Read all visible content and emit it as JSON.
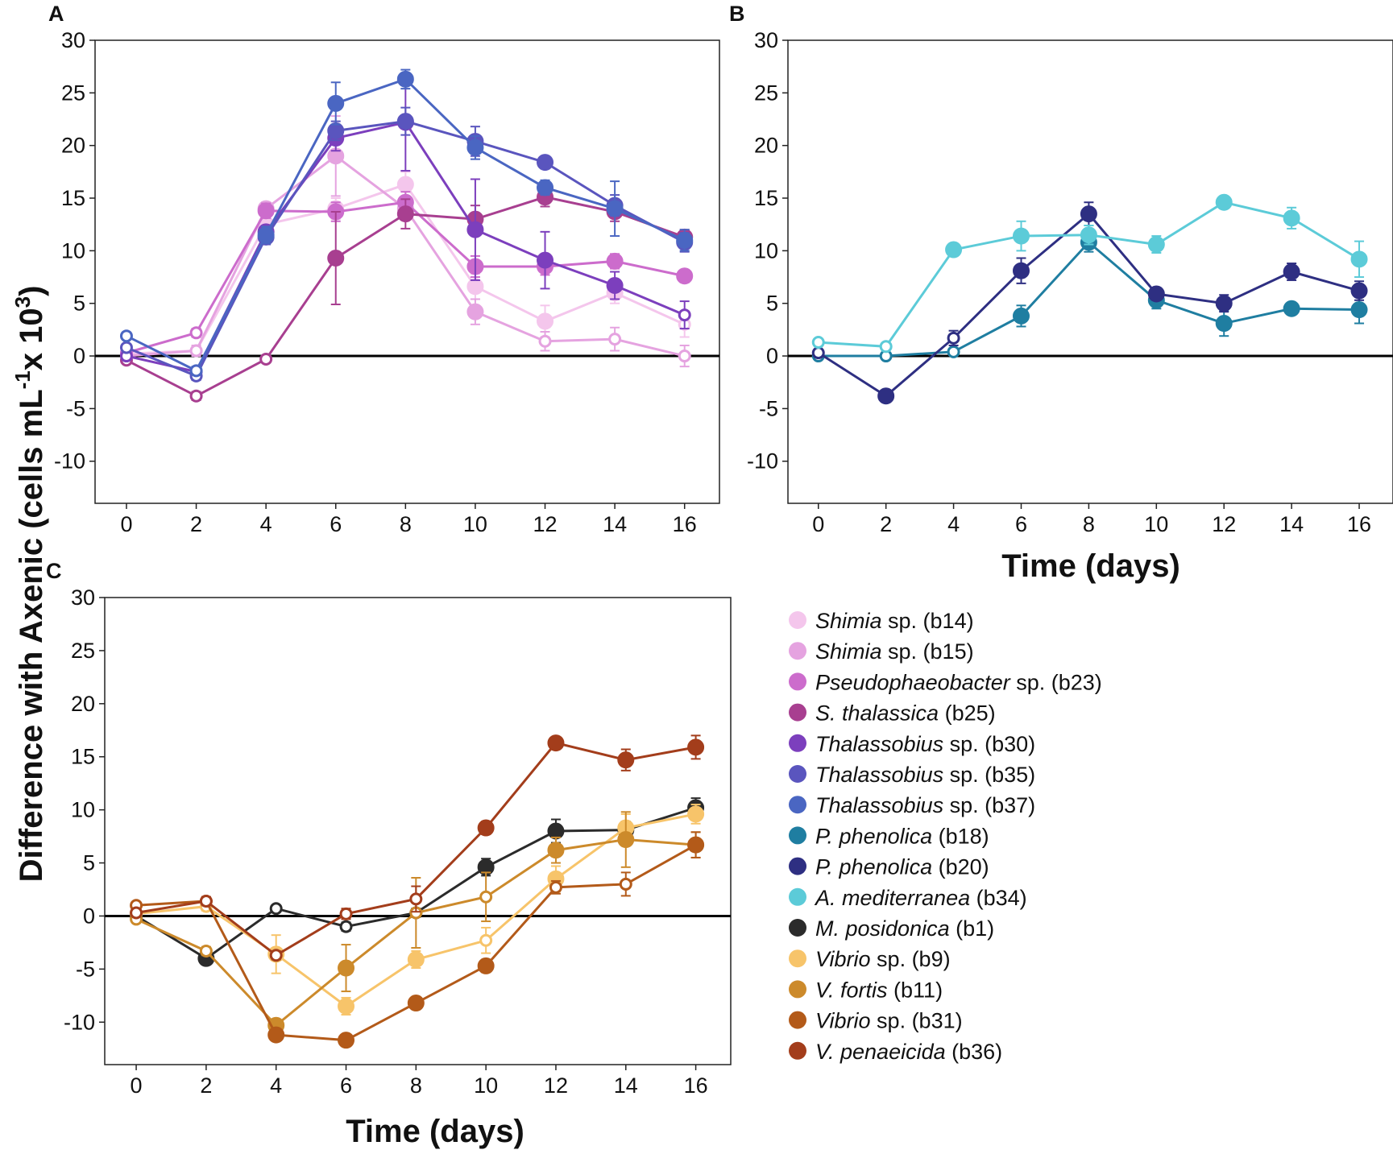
{
  "figure": {
    "panels": [
      "A",
      "B",
      "C"
    ],
    "ylabel": "Difference with Axenic (cells mL",
    "ylabel_sup1": "-1",
    "ylabel_mid": "x 10",
    "ylabel_sup2": "3",
    "ylabel_end": ")",
    "xlabel": "Time (days)"
  },
  "legend": [
    {
      "italic": "Shimia",
      "rest": " sp. (b14)",
      "color": "#f4c6ec"
    },
    {
      "italic": "Shimia",
      "rest": " sp. (b15)",
      "color": "#e5a3e0"
    },
    {
      "italic": "Pseudophaeobacter",
      "rest": " sp. (b23)",
      "color": "#cc6ccc"
    },
    {
      "italic": "S. thalassica",
      "rest": " (b25)",
      "color": "#a83f90"
    },
    {
      "italic": "Thalassobius",
      "rest": " sp. (b30)",
      "color": "#7c3fbd"
    },
    {
      "italic": "Thalassobius",
      "rest": " sp. (b35)",
      "color": "#5a55be"
    },
    {
      "italic": "Thalassobius",
      "rest": " sp. (b37)",
      "color": "#4a66c2"
    },
    {
      "italic": "P. phenolica",
      "rest": " (b18)",
      "color": "#1f7ea1"
    },
    {
      "italic": "P. phenolica",
      "rest": " (b20)",
      "color": "#2e2f82"
    },
    {
      "italic": "A. mediterranea",
      "rest": " (b34)",
      "color": "#5ccbd8"
    },
    {
      "italic": "M. posidonica",
      "rest": " (b1)",
      "color": "#2b2b2b"
    },
    {
      "italic": "Vibrio",
      "rest": " sp. (b9)",
      "color": "#f7c46a"
    },
    {
      "italic": "V. fortis",
      "rest": " (b11)",
      "color": "#cc8a2b"
    },
    {
      "italic": "Vibrio",
      "rest": " sp. (b31)",
      "color": "#b35a19"
    },
    {
      "italic": "V. penaeicida",
      "rest": " (b36)",
      "color": "#a33d1b"
    }
  ],
  "chart_data": [
    {
      "panel": "A",
      "type": "line",
      "x": [
        0,
        2,
        4,
        6,
        8,
        10,
        12,
        14,
        16
      ],
      "x_ticks": [
        "0",
        "2",
        "4",
        "6",
        "8",
        "10",
        "12",
        "14",
        "16"
      ],
      "y_ticks": [
        "30",
        "25",
        "20",
        "15",
        "10",
        "5",
        "0",
        "-5",
        "-10"
      ],
      "xlim": [
        -0.9,
        17
      ],
      "ylim": [
        -14,
        30
      ],
      "xlabel": "",
      "ylabel": "Difference with Axenic (cells mL-1 x 103)",
      "filled_note": "open markers = not significant, filled markers = significant",
      "series": [
        {
          "name": "Shimia sp. (b14)",
          "color": "#f4c6ec",
          "values": [
            0.2,
            0.5,
            12.5,
            14.0,
            16.3,
            6.6,
            3.3,
            6.0,
            3.0
          ],
          "errors": [
            0.3,
            0.4,
            0.6,
            1.0,
            1.2,
            1.2,
            1.5,
            1.0,
            1.2
          ],
          "filled": [
            false,
            false,
            true,
            true,
            true,
            true,
            true,
            true,
            false
          ]
        },
        {
          "name": "Shimia sp. (b15)",
          "color": "#e5a3e0",
          "values": [
            0.0,
            0.5,
            14.0,
            19.0,
            14.0,
            4.2,
            1.4,
            1.6,
            0.0
          ],
          "errors": [
            0.3,
            0.5,
            0.6,
            3.8,
            1.0,
            1.2,
            0.9,
            1.1,
            1.0
          ],
          "filled": [
            false,
            false,
            true,
            true,
            true,
            true,
            false,
            false,
            false
          ]
        },
        {
          "name": "Pseudophaeobacter sp. (b23)",
          "color": "#cc6ccc",
          "values": [
            0.3,
            2.2,
            13.8,
            13.7,
            14.6,
            8.5,
            8.5,
            9.0,
            7.6
          ],
          "errors": [
            0.3,
            0.4,
            0.7,
            0.9,
            1.0,
            1.0,
            0.8,
            0.7,
            0.6
          ],
          "filled": [
            false,
            false,
            true,
            true,
            true,
            true,
            true,
            true,
            true
          ]
        },
        {
          "name": "S. thalassica (b25)",
          "color": "#a83f90",
          "values": [
            -0.4,
            -3.8,
            -0.3,
            9.3,
            13.5,
            13.0,
            15.1,
            13.7,
            11.3
          ],
          "errors": [
            0.3,
            0.4,
            0.3,
            4.4,
            1.4,
            1.3,
            0.9,
            0.9,
            0.7
          ],
          "filled": [
            false,
            false,
            false,
            true,
            true,
            true,
            true,
            true,
            true
          ]
        },
        {
          "name": "Thalassobius sp. (b30)",
          "color": "#7c3fbd",
          "values": [
            0.0,
            -1.5,
            11.8,
            20.7,
            22.2,
            12.0,
            9.1,
            6.7,
            3.9
          ],
          "errors": [
            0.3,
            0.4,
            0.6,
            1.2,
            4.6,
            4.8,
            2.7,
            1.3,
            1.3
          ],
          "filled": [
            false,
            false,
            true,
            true,
            true,
            true,
            true,
            true,
            false
          ]
        },
        {
          "name": "Thalassobius sp. (b35)",
          "color": "#5a55be",
          "values": [
            0.8,
            -1.9,
            11.3,
            21.4,
            22.3,
            20.4,
            18.4,
            14.3,
            10.8
          ],
          "errors": [
            0.3,
            0.4,
            0.7,
            0.9,
            1.3,
            1.4,
            0.6,
            1.0,
            0.9
          ],
          "filled": [
            false,
            false,
            true,
            true,
            true,
            true,
            true,
            true,
            true
          ]
        },
        {
          "name": "Thalassobius sp. (b37)",
          "color": "#4a66c2",
          "values": [
            1.9,
            -1.4,
            11.5,
            24.0,
            26.3,
            19.8,
            16.0,
            14.0,
            11.0
          ],
          "errors": [
            0.3,
            0.4,
            0.8,
            2.0,
            0.9,
            1.1,
            0.7,
            2.6,
            1.0
          ],
          "filled": [
            false,
            false,
            true,
            true,
            true,
            true,
            true,
            true,
            true
          ]
        }
      ]
    },
    {
      "panel": "B",
      "type": "line",
      "x": [
        0,
        2,
        4,
        6,
        8,
        10,
        12,
        14,
        16
      ],
      "x_ticks": [
        "0",
        "2",
        "4",
        "6",
        "8",
        "10",
        "12",
        "14",
        "16"
      ],
      "y_ticks": [
        "30",
        "25",
        "20",
        "15",
        "10",
        "5",
        "0",
        "-5",
        "-10"
      ],
      "xlim": [
        -0.9,
        17
      ],
      "ylim": [
        -14,
        30
      ],
      "xlabel": "Time (days)",
      "series": [
        {
          "name": "P. phenolica (b18)",
          "color": "#1f7ea1",
          "values": [
            0.0,
            0.0,
            0.4,
            3.8,
            10.8,
            5.3,
            3.1,
            4.5,
            4.4
          ],
          "errors": [
            0.2,
            0.2,
            0.3,
            1.0,
            0.9,
            0.8,
            1.2,
            0.5,
            1.3
          ],
          "filled": [
            false,
            false,
            false,
            true,
            true,
            true,
            true,
            true,
            true
          ]
        },
        {
          "name": "P. phenolica (b20)",
          "color": "#2e2f82",
          "values": [
            0.3,
            -3.8,
            1.7,
            8.1,
            13.5,
            5.9,
            5.0,
            8.0,
            6.2
          ],
          "errors": [
            0.3,
            0.3,
            0.7,
            1.2,
            1.1,
            0.6,
            0.8,
            0.8,
            0.9
          ],
          "filled": [
            false,
            true,
            false,
            true,
            true,
            true,
            true,
            true,
            true
          ]
        },
        {
          "name": "A. mediterranea (b34)",
          "color": "#5ccbd8",
          "values": [
            1.3,
            0.9,
            10.1,
            11.4,
            11.5,
            10.6,
            14.6,
            13.1,
            9.2
          ],
          "errors": [
            0.3,
            0.3,
            0.4,
            1.4,
            0.9,
            0.8,
            0.5,
            1.0,
            1.7
          ],
          "filled": [
            false,
            false,
            true,
            true,
            true,
            true,
            true,
            true,
            true
          ]
        }
      ]
    },
    {
      "panel": "C",
      "type": "line",
      "x": [
        0,
        2,
        4,
        6,
        8,
        10,
        12,
        14,
        16
      ],
      "x_ticks": [
        "0",
        "2",
        "4",
        "6",
        "8",
        "10",
        "12",
        "14",
        "16"
      ],
      "y_ticks": [
        "30",
        "25",
        "20",
        "15",
        "10",
        "5",
        "0",
        "-5",
        "-10"
      ],
      "xlim": [
        -0.9,
        17
      ],
      "ylim": [
        -14,
        30
      ],
      "xlabel": "Time (days)",
      "series": [
        {
          "name": "M. posidonica (b1)",
          "color": "#2b2b2b",
          "values": [
            0.0,
            -4.0,
            0.7,
            -1.0,
            0.3,
            4.6,
            8.0,
            8.1,
            10.2
          ],
          "errors": [
            0.3,
            0.4,
            0.3,
            0.4,
            0.4,
            0.8,
            1.1,
            0.8,
            0.9
          ],
          "filled": [
            false,
            true,
            false,
            false,
            false,
            true,
            true,
            true,
            true
          ]
        },
        {
          "name": "Vibrio sp. (b9)",
          "color": "#f7c46a",
          "values": [
            0.2,
            0.9,
            -3.6,
            -8.5,
            -4.1,
            -2.3,
            3.5,
            8.3,
            9.6
          ],
          "errors": [
            0.3,
            0.4,
            1.8,
            0.8,
            0.8,
            1.2,
            1.2,
            1.3,
            0.9
          ],
          "filled": [
            false,
            false,
            true,
            true,
            true,
            false,
            true,
            true,
            true
          ]
        },
        {
          "name": "V. fortis (b11)",
          "color": "#cc8a2b",
          "values": [
            -0.3,
            -3.3,
            -10.3,
            -4.9,
            0.3,
            1.8,
            6.2,
            7.2,
            6.7
          ],
          "errors": [
            0.3,
            0.4,
            0.5,
            2.2,
            3.3,
            2.3,
            1.2,
            2.6,
            1.2
          ],
          "filled": [
            false,
            false,
            true,
            true,
            false,
            false,
            true,
            true,
            true
          ]
        },
        {
          "name": "Vibrio sp. (b31)",
          "color": "#b35a19",
          "values": [
            1.0,
            1.4,
            -11.2,
            -11.7,
            -8.2,
            -4.7,
            2.7,
            3.0,
            6.7
          ],
          "errors": [
            0.3,
            0.4,
            0.4,
            0.5,
            0.5,
            0.6,
            0.6,
            1.1,
            1.2
          ],
          "filled": [
            false,
            false,
            true,
            true,
            true,
            true,
            false,
            false,
            true
          ]
        },
        {
          "name": "V. penaeicida (b36)",
          "color": "#a33d1b",
          "values": [
            0.3,
            1.4,
            -3.7,
            0.2,
            1.6,
            8.3,
            16.3,
            14.7,
            15.9
          ],
          "errors": [
            0.3,
            0.4,
            0.4,
            0.5,
            1.2,
            0.6,
            0.5,
            1.0,
            1.1
          ],
          "filled": [
            false,
            false,
            false,
            false,
            false,
            true,
            true,
            true,
            true
          ]
        }
      ]
    }
  ]
}
